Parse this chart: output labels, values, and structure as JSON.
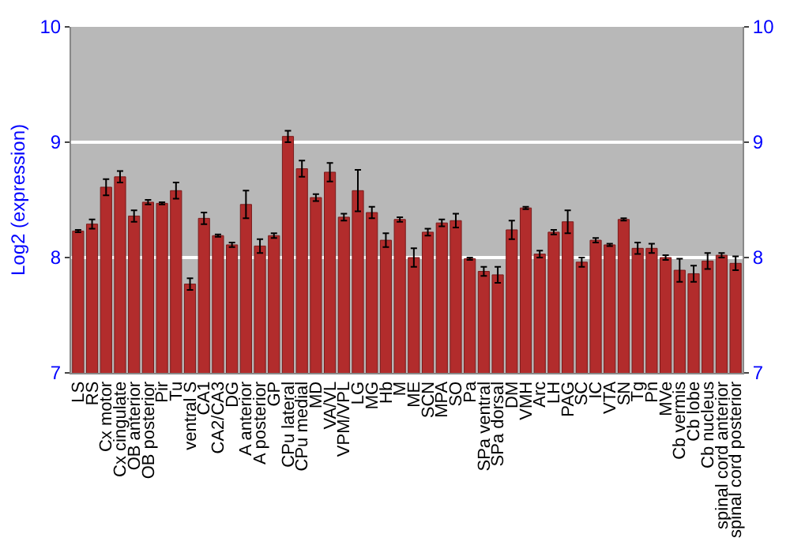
{
  "chart_data": {
    "type": "bar",
    "ylabel": "Log2 (expression)",
    "categories": [
      "LS",
      "RS",
      "Cx motor",
      "Cx cingulate",
      "OB anterior",
      "OB posterior",
      "Pir",
      "Tu",
      "ventral S",
      "CA1",
      "CA2/CA3",
      "DG",
      "A anterior",
      "A posterior",
      "GP",
      "CPu lateral",
      "CPu medial",
      "MD",
      "VA/VL",
      "VPM/VPL",
      "LG",
      "MG",
      "Hb",
      "M",
      "ME",
      "SCN",
      "MPA",
      "SO",
      "Pa",
      "SPa ventral",
      "SPa dorsal",
      "DM",
      "VMH",
      "Arc",
      "LH",
      "PAG",
      "SC",
      "IC",
      "VTA",
      "SN",
      "Tg",
      "Pn",
      "MVe",
      "Cb vermis",
      "Cb lobe",
      "Cb nucleus",
      "spinal cord anterior",
      "spinal cord posterior"
    ],
    "values": [
      8.23,
      8.29,
      8.61,
      8.7,
      8.36,
      8.48,
      8.47,
      8.58,
      7.77,
      8.34,
      8.19,
      8.11,
      8.46,
      8.1,
      8.19,
      9.05,
      8.77,
      8.52,
      8.74,
      8.35,
      8.58,
      8.39,
      8.15,
      8.33,
      8.0,
      8.22,
      8.3,
      8.32,
      7.99,
      7.88,
      7.85,
      8.24,
      8.43,
      8.03,
      8.22,
      8.31,
      7.96,
      8.15,
      8.11,
      8.33,
      8.08,
      8.08,
      8.0,
      7.89,
      7.86,
      7.97,
      8.02,
      7.95
    ],
    "errors": [
      0.01,
      0.04,
      0.07,
      0.05,
      0.05,
      0.02,
      0.01,
      0.07,
      0.05,
      0.05,
      0.01,
      0.02,
      0.12,
      0.06,
      0.02,
      0.05,
      0.07,
      0.03,
      0.08,
      0.03,
      0.18,
      0.05,
      0.06,
      0.02,
      0.08,
      0.03,
      0.03,
      0.06,
      0.01,
      0.04,
      0.07,
      0.08,
      0.01,
      0.03,
      0.02,
      0.1,
      0.04,
      0.02,
      0.01,
      0.01,
      0.05,
      0.04,
      0.02,
      0.1,
      0.07,
      0.07,
      0.02,
      0.06
    ],
    "color": "#b22c2c",
    "ylim": [
      7,
      10
    ],
    "yticks": [
      7,
      8,
      9,
      10
    ],
    "y2lim": [
      7,
      10
    ],
    "y2ticks": [
      7,
      8,
      9,
      10
    ],
    "grid": "y"
  }
}
